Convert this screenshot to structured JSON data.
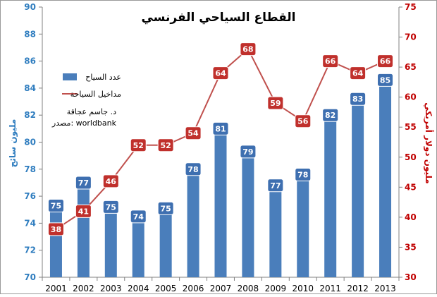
{
  "chart_data": {
    "type": "bar",
    "title": "القطاع السياحي الفرنسي",
    "categories": [
      "2001",
      "2002",
      "2003",
      "2004",
      "2005",
      "2006",
      "2007",
      "2008",
      "2009",
      "2010",
      "2011",
      "2012",
      "2013"
    ],
    "series": [
      {
        "name": "عدد السياح",
        "kind": "bar",
        "axis": "left",
        "values": [
          75,
          77,
          75,
          74,
          75,
          78,
          81,
          79,
          77,
          78,
          82,
          83,
          85
        ]
      },
      {
        "name": "مداخيل السياحة",
        "kind": "line",
        "axis": "right",
        "values": [
          38,
          41,
          46,
          52,
          52,
          54,
          64,
          68,
          59,
          56,
          66,
          64,
          66
        ]
      }
    ],
    "y_left": {
      "label": "مليون سائح",
      "range": [
        70,
        90
      ],
      "ticks": [
        "70",
        "72",
        "74",
        "76",
        "78",
        "80",
        "82",
        "84",
        "86",
        "88",
        "90"
      ]
    },
    "y_right": {
      "label": "مليون دولار أمريكي",
      "range": [
        30,
        75
      ],
      "ticks": [
        "30",
        "35",
        "40",
        "45",
        "50",
        "55",
        "60",
        "65",
        "70",
        "75"
      ]
    },
    "bar_plot_values": [
      75.3,
      77.0,
      75.2,
      74.5,
      75.1,
      78.0,
      81.0,
      79.3,
      76.8,
      77.6,
      82.0,
      83.2,
      84.6
    ],
    "legend_placement": "top-left",
    "annotations": {
      "author": "د. جاسم عجاقة",
      "source": "مصدر: worldbank"
    },
    "colors": {
      "bar": "#4a7ebb",
      "bar_label_bg": "#3e6fb0",
      "line": "#c0504d",
      "line_label_bg": "#c0302c",
      "left_axis": "#2f7dbf",
      "right_axis": "#c00000"
    },
    "grid": false
  }
}
